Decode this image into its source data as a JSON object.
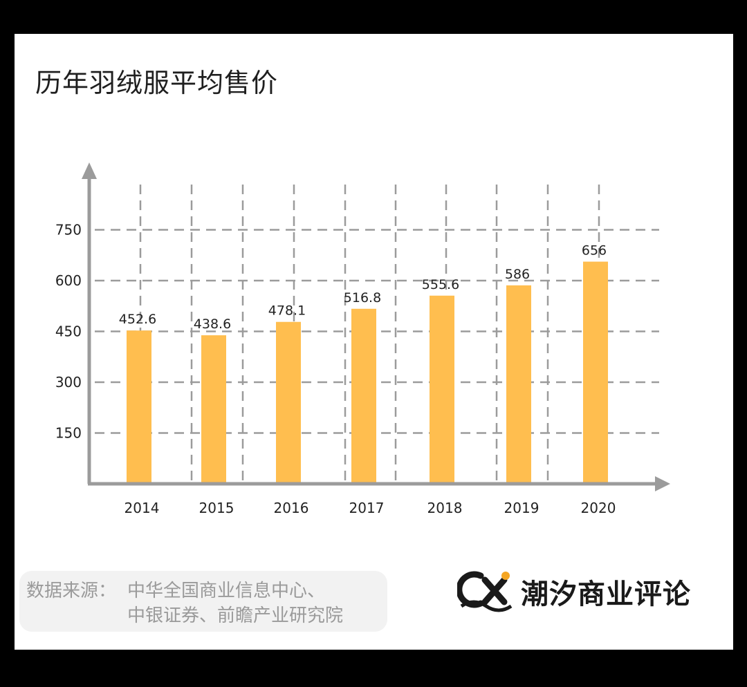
{
  "title": "历年羽绒服平均售价",
  "chart_data": {
    "type": "bar",
    "categories": [
      "2014",
      "2015",
      "2016",
      "2017",
      "2018",
      "2019",
      "2020"
    ],
    "values": [
      452.6,
      438.6,
      478.1,
      516.8,
      555.6,
      586,
      656
    ],
    "data_labels": [
      "452.6",
      "438.6",
      "478.1",
      "516.8",
      "555.6",
      "586",
      "656"
    ],
    "yticks": [
      150,
      300,
      450,
      600,
      750
    ],
    "ylim": [
      0,
      900
    ],
    "grid": true,
    "legend": "none",
    "bar_color": "#FFBE4F",
    "axis_color": "#9b9b9b",
    "grid_color": "#9b9b9b"
  },
  "source": {
    "label": "数据来源：",
    "line1": "中华全国商业信息中心、",
    "line2": "中银证券、前瞻产业研究院"
  },
  "logo": {
    "text": "潮汐商业评论",
    "icon": "cx-wave-logo-icon",
    "accent": "#F5A623"
  }
}
